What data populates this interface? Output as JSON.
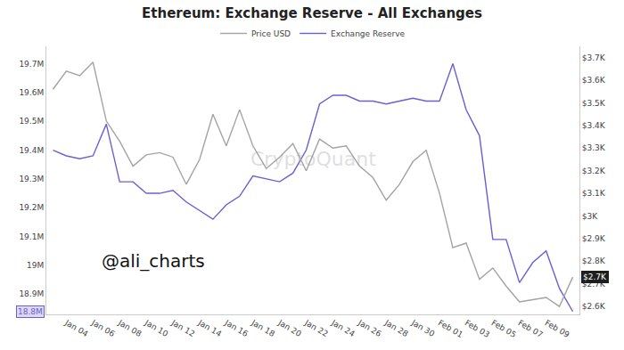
{
  "chart_data": {
    "type": "line",
    "title": "Ethereum: Exchange Reserve - All Exchanges",
    "categories": [
      null,
      "Jan 04",
      null,
      "Jan 06",
      null,
      "Jan 08",
      null,
      "Jan 10",
      null,
      "Jan 12",
      null,
      "Jan 14",
      null,
      "Jan 16",
      null,
      "Jan 18",
      null,
      "Jan 20",
      null,
      "Jan 22",
      null,
      "Jan 24",
      null,
      "Jan 26",
      null,
      "Jan 28",
      null,
      "Jan 30",
      null,
      "Feb 01",
      null,
      "Feb 03",
      null,
      "Feb 05",
      null,
      "Feb 07",
      null,
      "Feb 09",
      null,
      null
    ],
    "series": [
      {
        "name": "Price USD",
        "color": "#a3a3a3",
        "axis": "y2",
        "values": [
          3560,
          3640,
          3620,
          3680,
          3420,
          3330,
          3220,
          3270,
          3280,
          3260,
          3140,
          3250,
          3450,
          3310,
          3470,
          3310,
          3210,
          3260,
          3320,
          3200,
          3340,
          3300,
          3310,
          3220,
          3170,
          3070,
          3140,
          3240,
          3290,
          3100,
          2860,
          2880,
          2720,
          2770,
          2690,
          2620,
          2630,
          2640,
          2600,
          2730
        ],
        "value_labels": [
          null,
          null,
          null,
          null,
          null,
          null,
          null,
          null,
          null,
          null,
          null,
          null,
          null,
          null,
          null,
          null,
          null,
          null,
          null,
          null,
          null,
          null,
          null,
          null,
          null,
          null,
          null,
          null,
          null,
          null,
          null,
          null,
          null,
          null,
          null,
          null,
          null,
          null,
          null,
          "$2.7K"
        ]
      },
      {
        "name": "Exchange Reserve",
        "color": "#6c5fd3",
        "values": [
          19400000,
          19380000,
          19370000,
          19380000,
          19490000,
          19290000,
          19290000,
          19250000,
          19250000,
          19260000,
          19220000,
          19190000,
          19160000,
          19210000,
          19240000,
          19310000,
          19300000,
          19290000,
          19320000,
          19400000,
          19560000,
          19590000,
          19590000,
          19570000,
          19570000,
          19560000,
          19570000,
          19580000,
          19570000,
          19570000,
          19700000,
          19540000,
          19450000,
          19090000,
          19090000,
          18940000,
          19010000,
          19050000,
          18920000,
          18840000
        ],
        "value_labels": [
          null,
          null,
          null,
          null,
          null,
          null,
          null,
          null,
          null,
          null,
          null,
          null,
          null,
          null,
          null,
          null,
          null,
          null,
          null,
          null,
          null,
          null,
          null,
          null,
          null,
          null,
          null,
          null,
          null,
          null,
          null,
          null,
          null,
          null,
          null,
          null,
          null,
          null,
          null,
          "18.8M"
        ]
      }
    ],
    "ylim": [
      18830000,
      19760000
    ],
    "yticks": [
      {
        "value": 18900000,
        "label": "18.9M"
      },
      {
        "value": 19000000,
        "label": "19M"
      },
      {
        "value": 19100000,
        "label": "19.1M"
      },
      {
        "value": 19200000,
        "label": "19.2M"
      },
      {
        "value": 19300000,
        "label": "19.3M"
      },
      {
        "value": 19400000,
        "label": "19.4M"
      },
      {
        "value": 19500000,
        "label": "19.5M"
      },
      {
        "value": 19600000,
        "label": "19.6M"
      },
      {
        "value": 19700000,
        "label": "19.7M"
      }
    ],
    "y2lim": [
      2565,
      3750
    ],
    "y2ticks": [
      {
        "value": 2600,
        "label": "$2.6K"
      },
      {
        "value": 2700,
        "label": "$2.7K"
      },
      {
        "value": 2800,
        "label": "$2.8K"
      },
      {
        "value": 2900,
        "label": "$2.9K"
      },
      {
        "value": 3000,
        "label": "$3K"
      },
      {
        "value": 3100,
        "label": "$3.1K"
      },
      {
        "value": 3200,
        "label": "$3.2K"
      },
      {
        "value": 3300,
        "label": "$3.3K"
      },
      {
        "value": 3400,
        "label": "$3.4K"
      },
      {
        "value": 3500,
        "label": "$3.5K"
      },
      {
        "value": 3600,
        "label": "$3.6K"
      },
      {
        "value": 3700,
        "label": "$3.7K"
      }
    ],
    "grid": false,
    "legend": "top",
    "data_labels": true,
    "annotations": [
      {
        "text": "CryptoQuant"
      },
      {
        "text": "@ali_charts"
      }
    ]
  }
}
